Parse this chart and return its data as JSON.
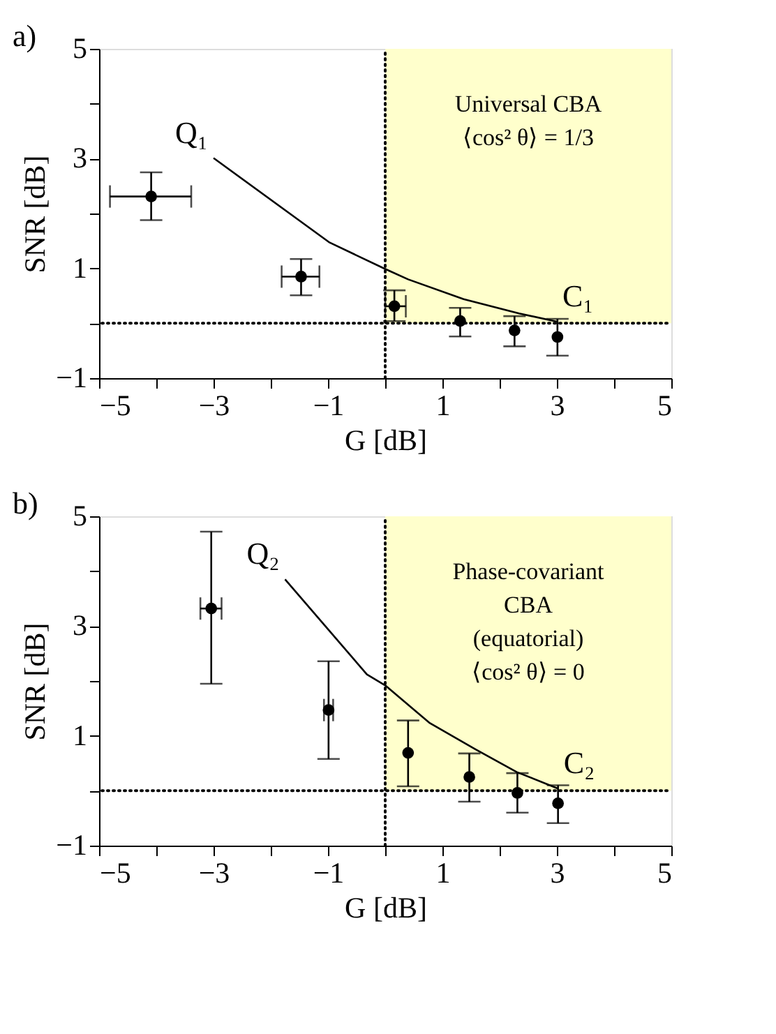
{
  "chart_data": [
    {
      "type": "scatter",
      "title": "a)",
      "xlabel": "G [dB]",
      "ylabel": "SNR [dB]",
      "xlim": [
        -5,
        5
      ],
      "ylim": [
        -1,
        5
      ],
      "xticks": [
        -5,
        {
          "value": -4,
          "label": null
        },
        -3,
        {
          "value": -2,
          "label": null
        },
        -1,
        {
          "value": 0,
          "label": null
        },
        1,
        {
          "value": 2,
          "label": null
        },
        3,
        {
          "value": 4,
          "label": null
        },
        5
      ],
      "yticks": [
        -1,
        {
          "value": 0,
          "label": null
        },
        1,
        {
          "value": 2,
          "label": null
        },
        3,
        {
          "value": 4,
          "label": null
        },
        5
      ],
      "grid": false,
      "series": [
        {
          "color": "#000000",
          "marker": "circle",
          "x": [
            -4.09,
            -1.47,
            0.16,
            1.31,
            2.26,
            3.01
          ],
          "values": [
            2.31,
            0.85,
            0.31,
            0.04,
            -0.13,
            -0.25
          ],
          "errors": [
            [
              1.88,
              2.75
            ],
            [
              0.51,
              1.17
            ],
            [
              0.04,
              0.6
            ],
            [
              -0.24,
              0.28
            ],
            [
              -0.42,
              0.13
            ],
            [
              -0.59,
              0.08
            ]
          ],
          "xerrors": [
            [
              -4.81,
              -3.39
            ],
            [
              -1.81,
              -1.15
            ],
            [
              0.0,
              0.36
            ],
            null,
            null,
            null
          ]
        },
        {
          "type": "line",
          "color": "#000000",
          "line_style": "solid",
          "x": [
            -3.0,
            -0.97,
            0.0,
            0.4,
            1.37,
            2.34,
            3.0
          ],
          "values": [
            3.01,
            1.47,
            0.99,
            0.8,
            0.44,
            0.18,
            0.03
          ]
        }
      ],
      "ref_lines": [
        {
          "axis": "x",
          "value": 0,
          "line_style": "dotted",
          "color": "#000000"
        },
        {
          "axis": "y",
          "value": 0,
          "line_style": "dotted",
          "color": "#000000"
        }
      ],
      "bands": [
        {
          "axis": "x",
          "from": 0,
          "to": 5,
          "color": "#ffffcc"
        }
      ],
      "annotations": [
        {
          "text": "Q₁",
          "x": -3.0,
          "y": 3.01
        },
        {
          "text": "C₁",
          "x": 3.0,
          "y": 0.03
        },
        "Universal CBA",
        "⟨cos² θ⟩ = 1/3"
      ]
    },
    {
      "type": "scatter",
      "title": "b)",
      "xlabel": "G [dB]",
      "ylabel": "SNR [dB]",
      "xlim": [
        -5,
        5
      ],
      "ylim": [
        -1,
        5
      ],
      "xticks": [
        -5,
        {
          "value": -4,
          "label": null
        },
        -3,
        {
          "value": -2,
          "label": null
        },
        -1,
        {
          "value": 0,
          "label": null
        },
        1,
        {
          "value": 2,
          "label": null
        },
        3,
        {
          "value": 4,
          "label": null
        },
        5
      ],
      "yticks": [
        -1,
        {
          "value": 0,
          "label": null
        },
        1,
        {
          "value": 2,
          "label": null
        },
        3,
        {
          "value": 4,
          "label": null
        },
        5
      ],
      "grid": false,
      "series": [
        {
          "color": "#000000",
          "marker": "circle",
          "x": [
            -3.04,
            -0.99,
            0.4,
            1.47,
            2.31,
            3.02
          ],
          "values": [
            3.32,
            1.47,
            0.69,
            0.25,
            -0.04,
            -0.23
          ],
          "errors": [
            [
              1.95,
              4.72
            ],
            [
              0.58,
              2.36
            ],
            [
              0.08,
              1.28
            ],
            [
              -0.2,
              0.68
            ],
            [
              -0.4,
              0.32
            ],
            [
              -0.59,
              0.1
            ]
          ],
          "xerrors": [
            [
              -3.23,
              -2.86
            ],
            [
              -1.07,
              -0.91
            ],
            null,
            null,
            null,
            null
          ]
        },
        {
          "type": "line",
          "color": "#000000",
          "line_style": "solid",
          "x": [
            -1.75,
            -0.32,
            0.0,
            0.77,
            1.57,
            2.3,
            3.02
          ],
          "values": [
            3.85,
            2.12,
            1.92,
            1.24,
            0.76,
            0.34,
            0.04
          ]
        }
      ],
      "ref_lines": [
        {
          "axis": "x",
          "value": 0,
          "line_style": "dotted",
          "color": "#000000"
        },
        {
          "axis": "y",
          "value": 0,
          "line_style": "dotted",
          "color": "#000000"
        }
      ],
      "bands": [
        {
          "axis": "x",
          "from": 0,
          "to": 5,
          "color": "#ffffcc"
        }
      ],
      "annotations": [
        {
          "text": "Q₂",
          "x": -1.75,
          "y": 3.85
        },
        {
          "text": "C₂",
          "x": 3.02,
          "y": 0.04
        },
        "Phase-covariant",
        "CBA",
        "(equatorial)",
        "⟨cos² θ⟩ = 0"
      ]
    }
  ]
}
